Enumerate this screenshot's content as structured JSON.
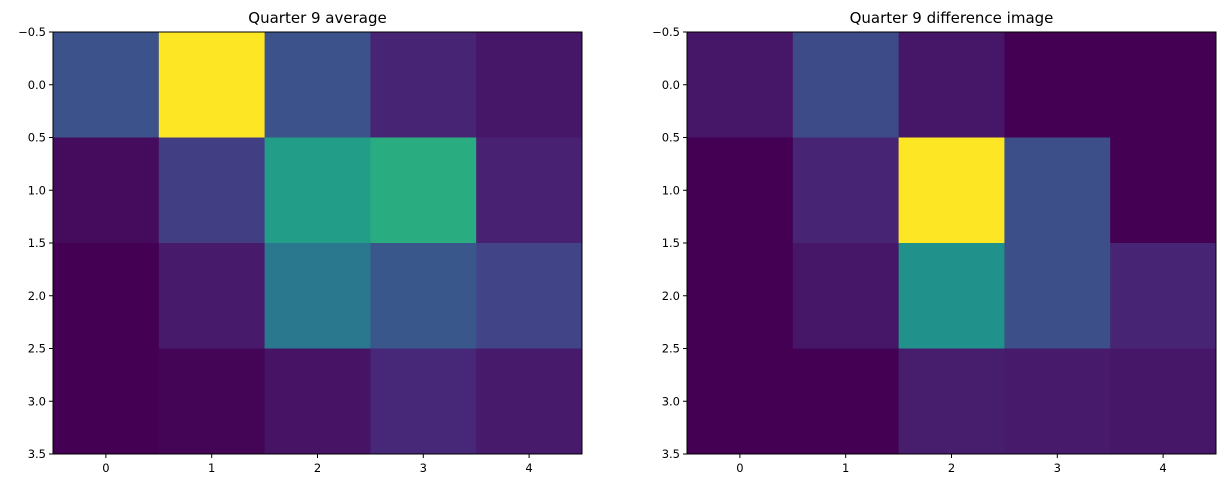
{
  "chart_data": [
    {
      "type": "heatmap",
      "title": "Quarter 9 average",
      "colormap": "viridis",
      "x_ticks": [
        "0",
        "1",
        "2",
        "3",
        "4"
      ],
      "y_ticks": [
        "−0.5",
        "0.0",
        "0.5",
        "1.0",
        "1.5",
        "2.0",
        "2.5",
        "3.0",
        "3.5"
      ],
      "xlim": [
        -0.5,
        4.5
      ],
      "ylim": [
        3.5,
        -0.5
      ],
      "values": [
        [
          0.25,
          1.0,
          0.25,
          0.1,
          0.06
        ],
        [
          0.03,
          0.18,
          0.55,
          0.62,
          0.09
        ],
        [
          0.0,
          0.07,
          0.4,
          0.27,
          0.2
        ],
        [
          0.0,
          0.01,
          0.05,
          0.11,
          0.07
        ]
      ]
    },
    {
      "type": "heatmap",
      "title": "Quarter 9 difference image",
      "colormap": "viridis",
      "x_ticks": [
        "0",
        "1",
        "2",
        "3",
        "4"
      ],
      "y_ticks": [
        "−0.5",
        "0.0",
        "0.5",
        "1.0",
        "1.5",
        "2.0",
        "2.5",
        "3.0",
        "3.5"
      ],
      "xlim": [
        -0.5,
        4.5
      ],
      "ylim": [
        3.5,
        -0.5
      ],
      "values": [
        [
          0.06,
          0.23,
          0.06,
          0.0,
          0.0
        ],
        [
          0.0,
          0.1,
          1.0,
          0.24,
          0.0
        ],
        [
          0.0,
          0.06,
          0.5,
          0.24,
          0.1
        ],
        [
          0.0,
          0.0,
          0.08,
          0.07,
          0.06
        ]
      ]
    }
  ]
}
